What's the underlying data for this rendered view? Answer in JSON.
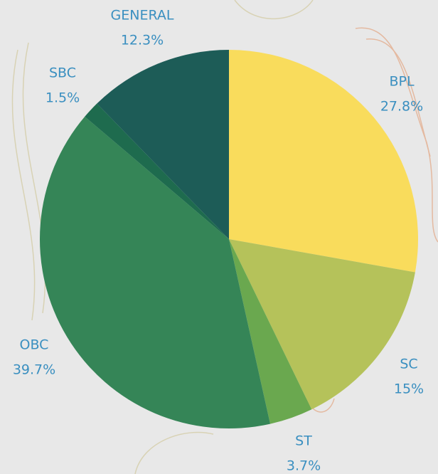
{
  "chart_data": {
    "type": "pie",
    "categories": [
      "BPL",
      "SC",
      "ST",
      "OBC",
      "SBC",
      "GENERAL"
    ],
    "values": [
      27.8,
      15,
      3.7,
      39.7,
      1.5,
      12.3
    ],
    "value_labels": [
      "27.8%",
      "15%",
      "3.7%",
      "39.7%",
      "1.5%",
      "12.3%"
    ],
    "colors": [
      "#f9dc5c",
      "#b5c25a",
      "#6aa84f",
      "#358557",
      "#1e6b4e",
      "#1d5c57"
    ]
  }
}
